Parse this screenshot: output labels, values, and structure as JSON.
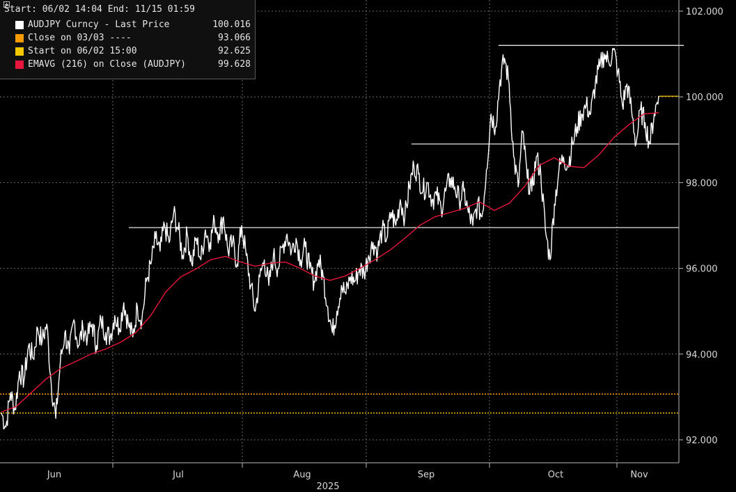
{
  "legend": {
    "header": "Start: 06/02 14:04 End: 11/15 01:59",
    "items": [
      {
        "label": "AUDJPY Curncy - Last Price",
        "value": "100.016",
        "color": "#ffffff"
      },
      {
        "label": "Close on 03/03 ----",
        "value": "93.066",
        "color": "#f59a00"
      },
      {
        "label": "Start on 06/02 15:00",
        "value": "92.625",
        "color": "#f5c800"
      },
      {
        "label": "EMAVG (216)  on Close (AUDJPY)",
        "value": "99.628",
        "color": "#e8163c"
      }
    ]
  },
  "chart_data": {
    "type": "line",
    "xlabel": "2025",
    "x_ticks": [
      "Jun",
      "Jul",
      "Aug",
      "Sep",
      "Oct",
      "Nov"
    ],
    "y_ticks": [
      "92.000",
      "94.000",
      "96.000",
      "98.000",
      "100.000",
      "102.000"
    ],
    "ylim": [
      91.5,
      102.2
    ],
    "grid": true,
    "legend_position": "top-left",
    "y_axis_side": "right",
    "series": [
      {
        "name": "AUDJPY Curncy - Last Price",
        "color": "#ffffff",
        "values": [
          92.63,
          92.3,
          93.1,
          92.7,
          93.6,
          93.4,
          94.2,
          93.9,
          94.6,
          94.3,
          94.7,
          93.3,
          92.5,
          93.8,
          94.5,
          94.0,
          94.8,
          94.2,
          94.6,
          94.4,
          94.7,
          94.2,
          94.8,
          94.5,
          94.4,
          94.9,
          94.6,
          95.2,
          94.7,
          94.4,
          95.1,
          94.8,
          95.7,
          96.1,
          96.7,
          96.4,
          97.0,
          96.6,
          97.3,
          96.9,
          96.3,
          96.8,
          96.1,
          96.7,
          96.2,
          96.9,
          96.6,
          97.1,
          96.8,
          97.2,
          96.4,
          96.6,
          96.1,
          97.0,
          96.3,
          95.6,
          95.0,
          95.8,
          96.2,
          95.6,
          96.3,
          96.0,
          96.5,
          96.8,
          96.4,
          96.7,
          96.2,
          96.5,
          96.0,
          95.7,
          96.2,
          95.8,
          95.1,
          94.5,
          95.0,
          95.6,
          95.4,
          95.8,
          95.7,
          96.0,
          95.9,
          96.3,
          96.6,
          96.4,
          96.9,
          96.7,
          97.3,
          97.0,
          97.6,
          97.2,
          97.9,
          98.4,
          98.2,
          97.8,
          98.0,
          97.6,
          97.7,
          97.4,
          97.8,
          98.1,
          97.9,
          97.6,
          97.8,
          97.3,
          97.0,
          97.5,
          97.2,
          98.3,
          99.6,
          99.3,
          100.4,
          100.9,
          100.3,
          98.6,
          97.9,
          99.2,
          98.1,
          97.8,
          98.6,
          98.2,
          96.9,
          96.2,
          97.5,
          98.3,
          98.6,
          98.4,
          98.9,
          99.3,
          99.6,
          99.8,
          99.6,
          100.3,
          100.7,
          101.0,
          100.8,
          101.1,
          100.6,
          99.8,
          100.3,
          99.7,
          98.9,
          99.7,
          99.4,
          98.9,
          99.6,
          100.02
        ]
      },
      {
        "name": "EMAVG (216)  on Close (AUDJPY)",
        "color": "#e8163c",
        "values": [
          92.65,
          92.78,
          93.1,
          93.42,
          93.67,
          93.83,
          94.0,
          94.12,
          94.28,
          94.5,
          94.9,
          95.45,
          95.8,
          95.98,
          96.2,
          96.28,
          96.15,
          96.05,
          96.12,
          96.15,
          96.0,
          95.82,
          95.72,
          95.82,
          96.0,
          96.2,
          96.42,
          96.7,
          97.0,
          97.2,
          97.3,
          97.4,
          97.55,
          97.35,
          97.52,
          97.9,
          98.4,
          98.58,
          98.38,
          98.35,
          98.65,
          99.05,
          99.35,
          99.6,
          99.63
        ]
      }
    ],
    "horizontal_lines": [
      {
        "label": "Close on 03/03",
        "value": 93.066,
        "color": "#f59a00"
      },
      {
        "label": "Start on 06/02 15:00",
        "value": 92.625,
        "color": "#f5c800"
      },
      {
        "value": 101.2,
        "color": "#ffffff"
      },
      {
        "value": 98.9,
        "color": "#ffffff"
      },
      {
        "value": 96.95,
        "color": "#ffffff"
      }
    ],
    "last_value_marker": {
      "value": 100.016,
      "color": "#f5c800"
    }
  }
}
